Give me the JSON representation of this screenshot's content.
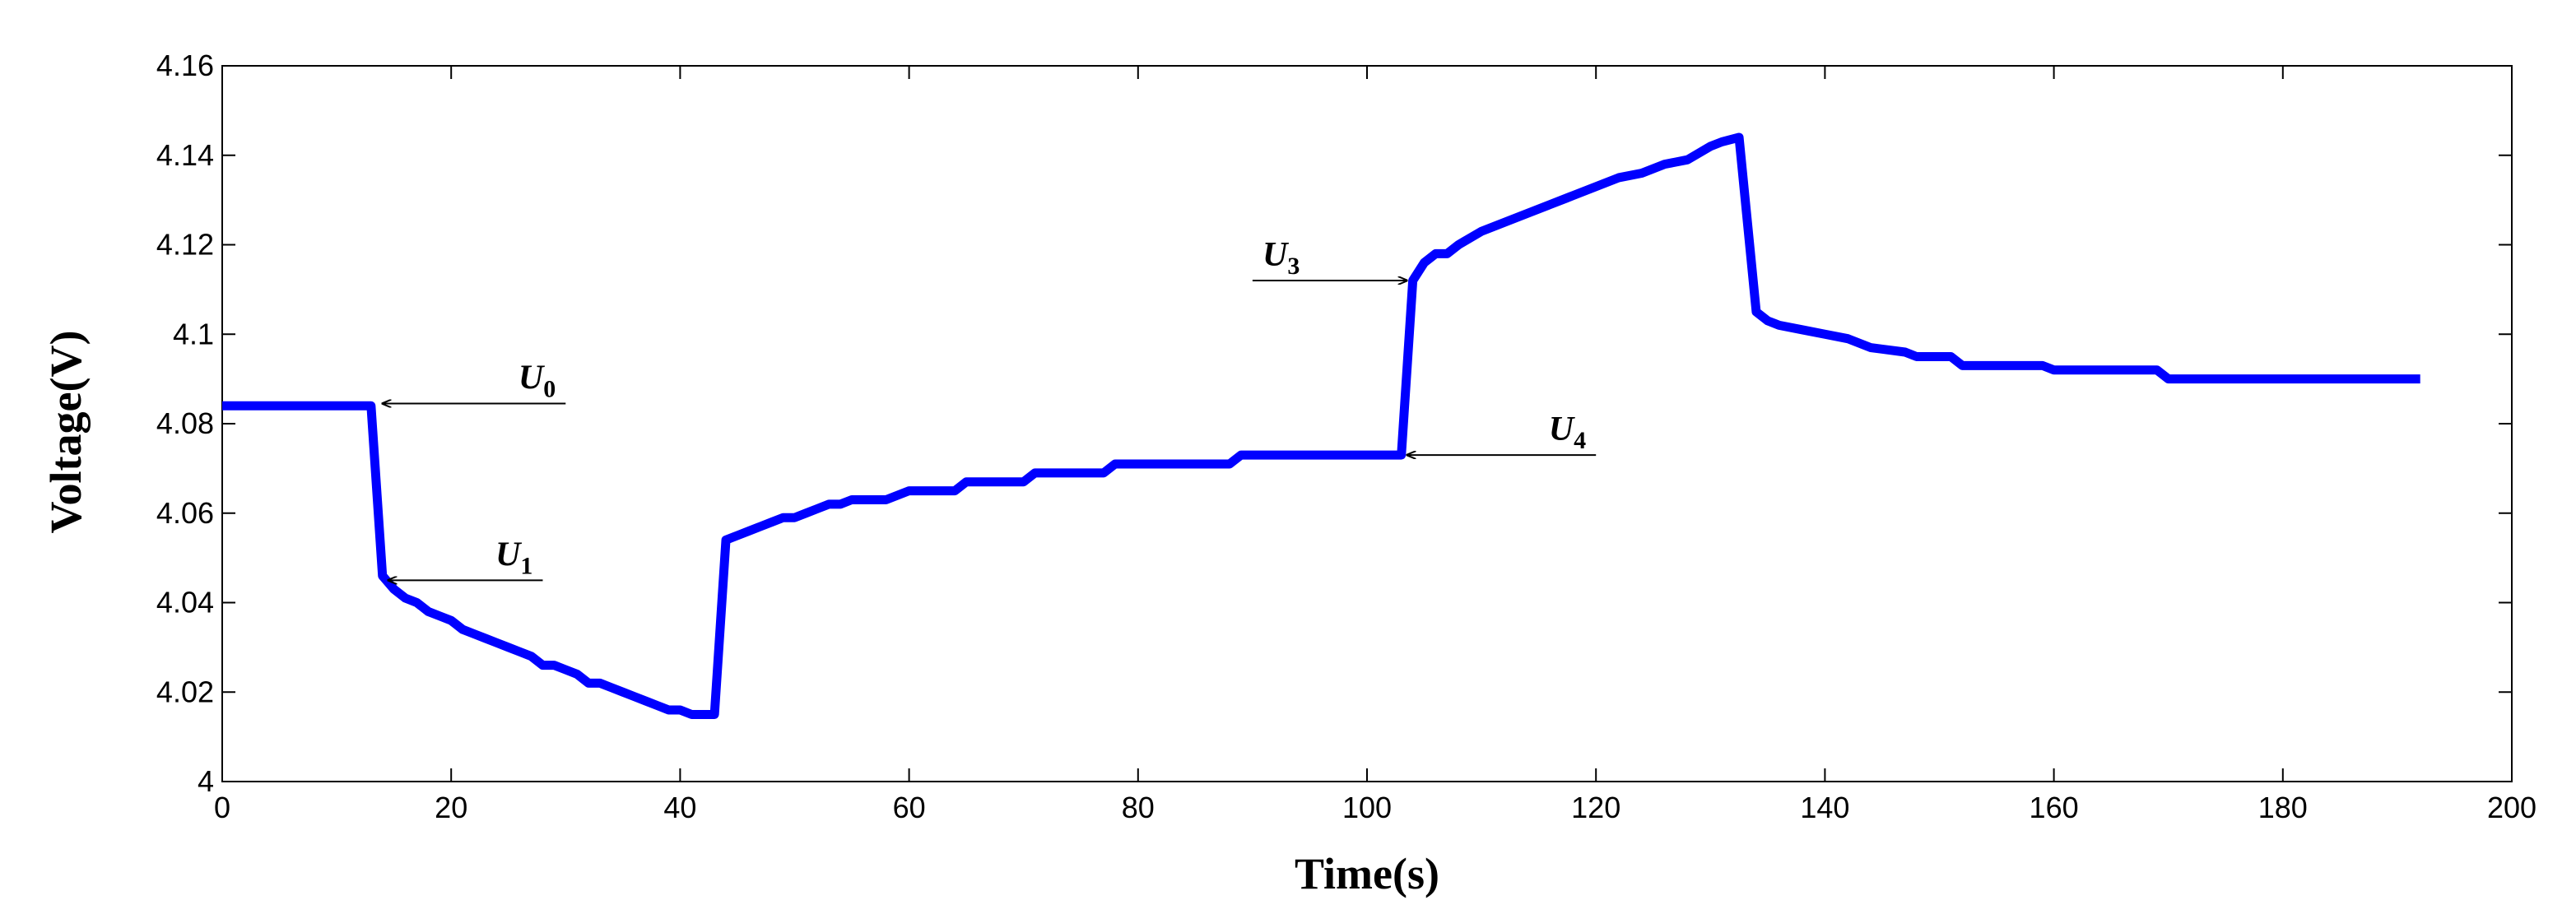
{
  "chart_data": {
    "type": "line",
    "xlabel": "Time(s)",
    "ylabel": "Voltage(V)",
    "xlim": [
      0,
      200
    ],
    "ylim": [
      4,
      4.16
    ],
    "xticks": [
      0,
      20,
      40,
      60,
      80,
      100,
      120,
      140,
      160,
      180,
      200
    ],
    "yticks": [
      4,
      4.02,
      4.04,
      4.06,
      4.08,
      4.1,
      4.12,
      4.14,
      4.16
    ],
    "grid": false,
    "series": [
      {
        "color": "#0000ff",
        "x": [
          0,
          13,
          14,
          15,
          16,
          17,
          18,
          19,
          20,
          21,
          22,
          23,
          24,
          25,
          26,
          27,
          28,
          29,
          30,
          31,
          32,
          33,
          34,
          35,
          36,
          37,
          38,
          39,
          40,
          41,
          42,
          43,
          44,
          45,
          46,
          47,
          48,
          49,
          50,
          51,
          52,
          53,
          54,
          55,
          56,
          58,
          60,
          62,
          64,
          65,
          70,
          71,
          77,
          78,
          88,
          89,
          103,
          104,
          105,
          106,
          107,
          108,
          110,
          112,
          114,
          116,
          118,
          120,
          122,
          124,
          126,
          128,
          130,
          131,
          132.5,
          134,
          135,
          136,
          138,
          140,
          142,
          144,
          147,
          148,
          151,
          152,
          159,
          160,
          169,
          170,
          192
        ],
        "values": [
          4.084,
          4.084,
          4.046,
          4.043,
          4.041,
          4.04,
          4.038,
          4.037,
          4.036,
          4.034,
          4.033,
          4.032,
          4.031,
          4.03,
          4.029,
          4.028,
          4.026,
          4.026,
          4.025,
          4.024,
          4.022,
          4.022,
          4.021,
          4.02,
          4.019,
          4.018,
          4.017,
          4.016,
          4.016,
          4.015,
          4.015,
          4.015,
          4.054,
          4.055,
          4.056,
          4.057,
          4.058,
          4.059,
          4.059,
          4.06,
          4.061,
          4.062,
          4.062,
          4.063,
          4.063,
          4.063,
          4.065,
          4.065,
          4.065,
          4.067,
          4.067,
          4.069,
          4.069,
          4.071,
          4.071,
          4.073,
          4.073,
          4.112,
          4.116,
          4.118,
          4.118,
          4.12,
          4.123,
          4.125,
          4.127,
          4.129,
          4.131,
          4.133,
          4.135,
          4.136,
          4.138,
          4.139,
          4.142,
          4.143,
          4.144,
          4.105,
          4.103,
          4.102,
          4.101,
          4.1,
          4.099,
          4.097,
          4.096,
          4.095,
          4.095,
          4.093,
          4.093,
          4.092,
          4.092,
          4.09,
          4.09
        ]
      }
    ],
    "annotations": [
      {
        "label": "U",
        "subscript": "0",
        "x": 14,
        "y": 4.0845,
        "tail_x": 30
      },
      {
        "label": "U",
        "subscript": "1",
        "x": 14.5,
        "y": 4.045,
        "tail_x": 28
      },
      {
        "label": "U",
        "subscript": "3",
        "x": 103.5,
        "y": 4.112,
        "tail_x": 90
      },
      {
        "label": "U",
        "subscript": "4",
        "x": 103.5,
        "y": 4.073,
        "tail_x": 120
      }
    ]
  }
}
